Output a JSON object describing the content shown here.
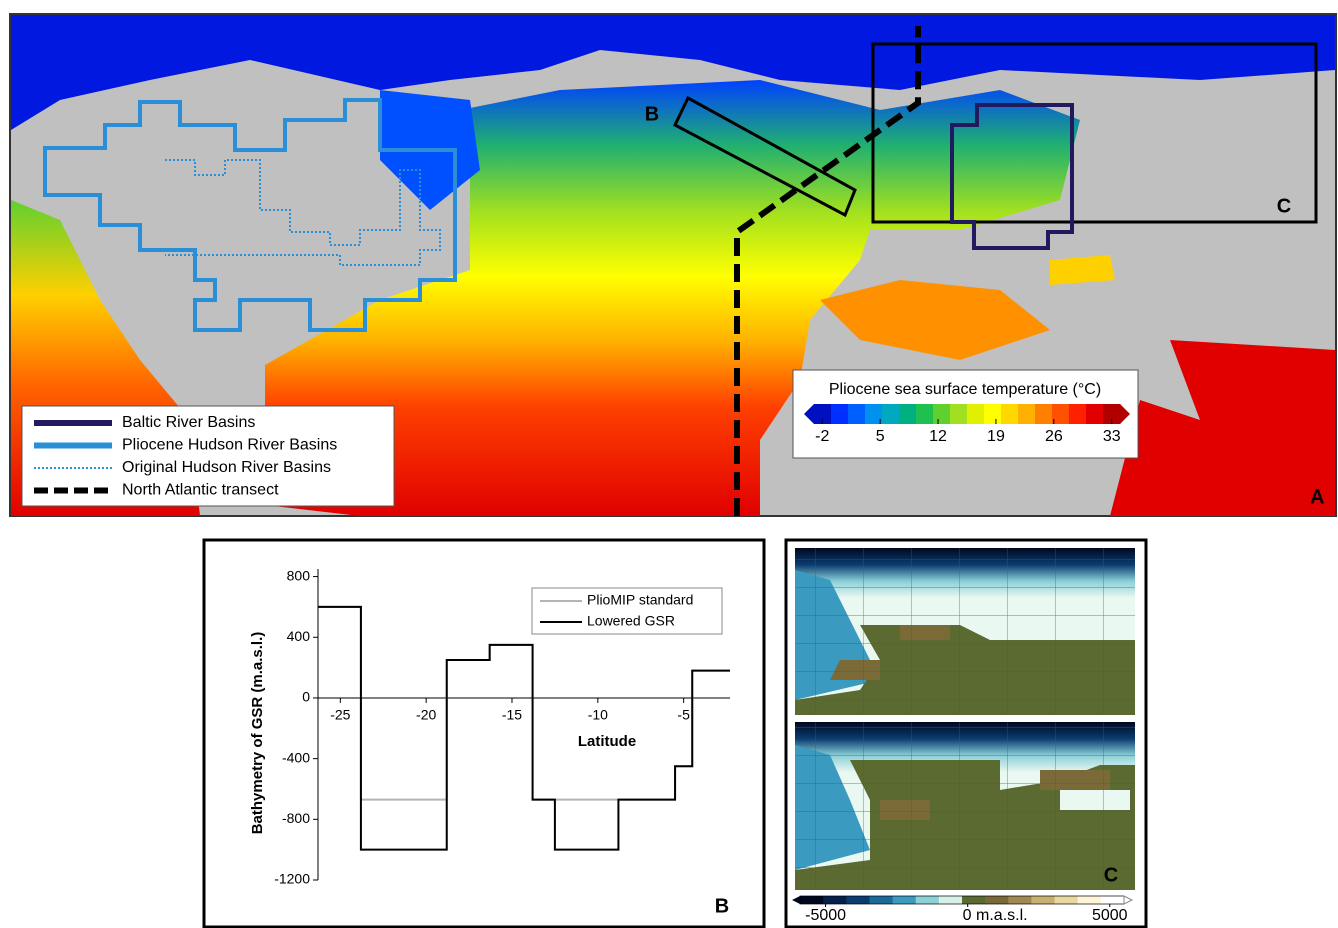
{
  "chart_data": [
    {
      "type": "map",
      "panel_label": "A",
      "box_labels": [
        "B",
        "C"
      ],
      "legend": [
        {
          "name": "Baltic River Basins",
          "color": "#221a5e",
          "style": "solid"
        },
        {
          "name": "Pliocene Hudson River Basins",
          "color": "#2a8fd6",
          "style": "solid"
        },
        {
          "name": "Original Hudson River Basins",
          "color": "#2a8fd6",
          "style": "dotted"
        },
        {
          "name": "North Atlantic transect",
          "color": "#000000",
          "style": "dashed"
        }
      ],
      "colorbar": {
        "title": "Pliocene sea surface temperature (°C)",
        "clim": [
          -3,
          34
        ],
        "ticks": [
          -2,
          5,
          12,
          19,
          26,
          33
        ],
        "colors": [
          "#0010c0",
          "#0030ff",
          "#0060ff",
          "#0090f0",
          "#00a8c0",
          "#00b080",
          "#20c050",
          "#60d030",
          "#a0e020",
          "#e0f000",
          "#ffff00",
          "#ffd800",
          "#ffb000",
          "#ff8000",
          "#ff5000",
          "#ff2000",
          "#e00000",
          "#b00000"
        ]
      }
    },
    {
      "type": "line",
      "panel_label": "B",
      "xlabel": "Latitude",
      "ylabel": "Bathymetry of GSR (m.a.s.l.)",
      "xlim": [
        -26.3,
        -2.3
      ],
      "ylim": [
        -1200,
        850
      ],
      "xticks": [
        -25,
        -20,
        -15,
        -10,
        -5
      ],
      "yticks": [
        -1200,
        -800,
        -400,
        0,
        400,
        800
      ],
      "legend_position": "upper right",
      "series": [
        {
          "name": "PlioMIP standard",
          "color": "#b4b4b4",
          "x": [
            -26.3,
            -23.8,
            -23.8,
            -18.8,
            -18.8,
            -16.3,
            -16.3,
            -13.8,
            -13.8,
            -12.5,
            -12.5,
            -8.8,
            -8.8,
            -5.5,
            -5.5,
            -4.5,
            -4.5,
            -2.3
          ],
          "values": [
            600,
            600,
            -670,
            -670,
            250,
            250,
            350,
            350,
            -670,
            -670,
            -670,
            -670,
            -670,
            -670,
            -450,
            -450,
            180,
            180
          ]
        },
        {
          "name": "Lowered GSR",
          "color": "#000000",
          "x": [
            -26.3,
            -23.8,
            -23.8,
            -18.8,
            -18.8,
            -16.3,
            -16.3,
            -13.8,
            -13.8,
            -12.5,
            -12.5,
            -8.8,
            -8.8,
            -5.5,
            -5.5,
            -4.5,
            -4.5,
            -2.3
          ],
          "values": [
            600,
            600,
            -1000,
            -1000,
            250,
            250,
            350,
            350,
            -670,
            -670,
            -1000,
            -1000,
            -670,
            -670,
            -450,
            -450,
            180,
            180
          ]
        }
      ]
    },
    {
      "type": "heatmap",
      "panel_label": "C",
      "colorbar": {
        "clim": [
          -5900,
          5500
        ],
        "ticks": [
          -5000,
          {
            "value": 0,
            "label": "0  m.a.s.l."
          },
          5000
        ],
        "colors": [
          "#000820",
          "#05204a",
          "#0a3c70",
          "#1a6a9a",
          "#3a9ac0",
          "#8cd0d8",
          "#d8f0e8",
          "#5a6a30",
          "#7a6a38",
          "#a08850",
          "#c8b070",
          "#e8d8a0",
          "#fff4d8",
          "#ffffff"
        ]
      }
    }
  ]
}
